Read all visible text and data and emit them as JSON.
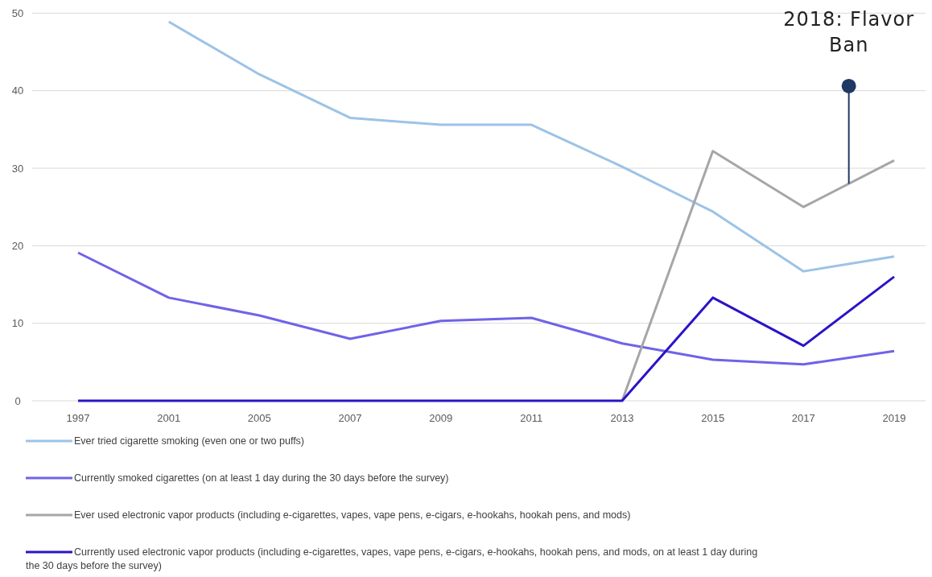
{
  "chart_data": {
    "type": "line",
    "categories": [
      "1997",
      "2001",
      "2005",
      "2007",
      "2009",
      "2011",
      "2013",
      "2015",
      "2017",
      "2019"
    ],
    "series": [
      {
        "name": "Ever tried cigarette smoking (even one or two puffs)",
        "color": "#9dc3e6",
        "values": [
          null,
          48.9,
          42.1,
          36.5,
          35.6,
          35.6,
          30.2,
          24.4,
          16.7,
          18.6
        ]
      },
      {
        "name": "Currently smoked cigarettes (on at least 1 day during the 30 days before the survey)",
        "color": "#6f63e8",
        "values": [
          19.1,
          13.3,
          11.0,
          8.0,
          10.3,
          10.7,
          7.4,
          5.3,
          4.7,
          6.4
        ]
      },
      {
        "name": "Ever used electronic vapor products (including e-cigarettes, vapes, vape pens, e-cigars, e-hookahs, hookah pens, and mods)",
        "color": "#a6a6a6",
        "values": [
          null,
          null,
          null,
          null,
          null,
          null,
          0,
          32.2,
          25.0,
          31.0
        ]
      },
      {
        "name": "Currently used electronic vapor products (including e-cigarettes, vapes, vape pens, e-cigars, e-hookahs, hookah pens, and mods, on at least 1 day during the 30 days before the survey)",
        "color": "#2a14c8",
        "values": [
          0,
          0,
          0,
          0,
          0,
          0,
          0,
          13.3,
          7.1,
          16.0
        ]
      }
    ],
    "ylim": [
      0,
      51.7
    ],
    "yticks": [
      0,
      10,
      20,
      30,
      40,
      50
    ],
    "grid": "y",
    "legend": "bottom",
    "marker": "none",
    "line_style": "solid",
    "annotations": [
      "2018: Flavor Ban"
    ]
  }
}
